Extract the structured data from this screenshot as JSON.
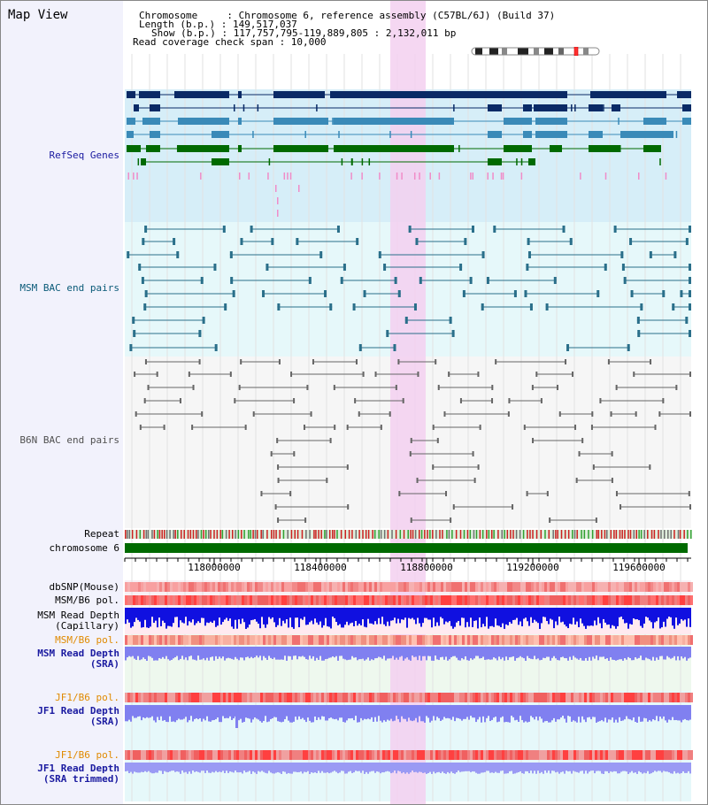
{
  "view_title": "Map View",
  "info": {
    "chromosome_line": "Chromosome     : Chromosome 6, reference assembly (C57BL/6J) (Build 37)",
    "length_line": "Length (b.p.) : 149,517,037",
    "show_line": "Show (b.p.) : 117,757,795-119,889,805 : 2,132,011 bp",
    "coverage_line": "Read coverage check span : 10,000"
  },
  "tracks": {
    "refseq": "RefSeq Genes",
    "msm_bac": "MSM BAC end pairs",
    "b6n_bac": "B6N BAC end pairs",
    "repeat": "Repeat",
    "chromosome": "chromosome 6",
    "dbsnp": "dbSNP(Mouse)",
    "msm_pol_1": "MSM/B6 pol.",
    "msm_depth_cap_1": "MSM Read Depth",
    "msm_depth_cap_2": "(Capillary)",
    "msm_pol_2": "MSM/B6 pol.",
    "msm_depth_sra_1": "MSM Read Depth",
    "msm_depth_sra_2": "(SRA)",
    "jf1_pol_1": "JF1/B6 pol.",
    "jf1_depth_sra_1": "JF1 Read Depth",
    "jf1_depth_sra_2": "(SRA)",
    "jf1_pol_2": "JF1/B6 pol.",
    "jf1_depth_trim_1": "JF1 Read Depth",
    "jf1_depth_trim_2": "(SRA trimmed)"
  },
  "axis_ticks": [
    "118000000",
    "118400000",
    "118800000",
    "119200000",
    "119600000"
  ],
  "colors": {
    "refseq_label": "#1a1aa0",
    "msm_label": "#0a5a78",
    "b6n_label": "#505050",
    "orange_label": "#e08a00",
    "blue_label": "#1a1aa0",
    "highlight": "#f3d0f0",
    "refseq_bg": "#d6eef8",
    "msm_bg": "#e6f8fa",
    "b6n_bg": "#f6f6f6",
    "depth_blue": "#1010e0",
    "depth_light": "#8080f0",
    "chromosome_bar": "#006a00"
  }
}
